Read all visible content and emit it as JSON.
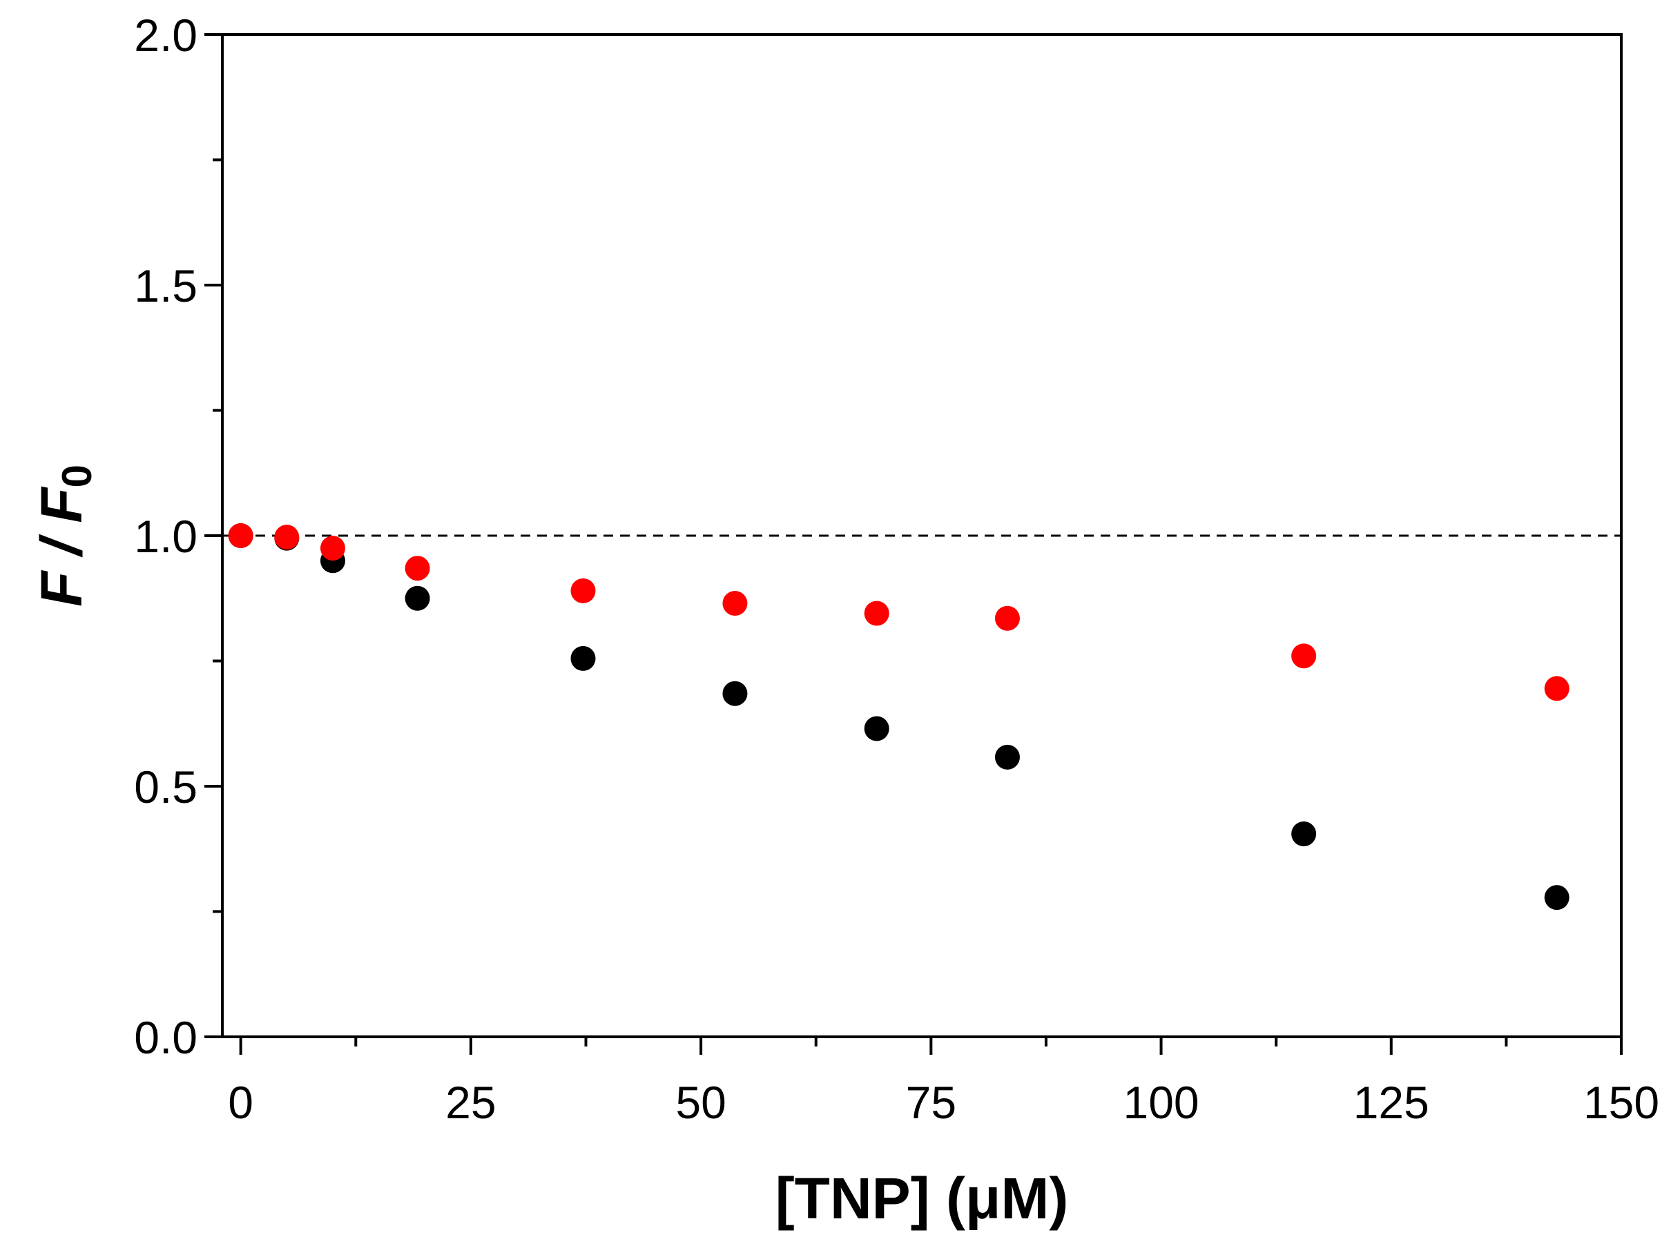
{
  "chart_data": {
    "type": "scatter",
    "title": "",
    "xlabel": "[TNP] (μM)",
    "ylabel": {
      "var1": "F",
      "slash": " / ",
      "var2": "F",
      "subscript": "0"
    },
    "xlim": [
      -2,
      150
    ],
    "ylim": [
      0,
      2.0
    ],
    "x_ticks": [
      0,
      25,
      50,
      75,
      100,
      125,
      150
    ],
    "x_tick_labels": [
      "0",
      "25",
      "50",
      "75",
      "100",
      "125",
      "150"
    ],
    "x_minor_ticks": [
      12.5,
      37.5,
      62.5,
      87.5,
      112.5,
      137.5
    ],
    "y_ticks": [
      0,
      0.5,
      1.0,
      1.5,
      2.0
    ],
    "y_tick_labels": [
      "0.0",
      "0.5",
      "1.0",
      "1.5",
      "2.0"
    ],
    "y_minor_ticks": [
      0.25,
      0.75,
      1.25,
      1.75
    ],
    "grid": false,
    "reference_line": {
      "y": 1.0,
      "style": "dashed",
      "color": "#000000"
    },
    "series": [
      {
        "color": "#000000",
        "x": [
          0,
          5,
          10,
          19.2,
          37.2,
          53.7,
          69.1,
          83.3,
          115.5,
          143
        ],
        "y": [
          1.0,
          0.995,
          0.95,
          0.875,
          0.755,
          0.685,
          0.615,
          0.558,
          0.405,
          0.278
        ]
      },
      {
        "color": "#ff0000",
        "x": [
          0,
          5,
          10,
          19.2,
          37.2,
          53.7,
          69.1,
          83.3,
          115.5,
          143
        ],
        "y": [
          1.0,
          0.997,
          0.975,
          0.935,
          0.89,
          0.865,
          0.845,
          0.835,
          0.76,
          0.695
        ]
      }
    ]
  }
}
